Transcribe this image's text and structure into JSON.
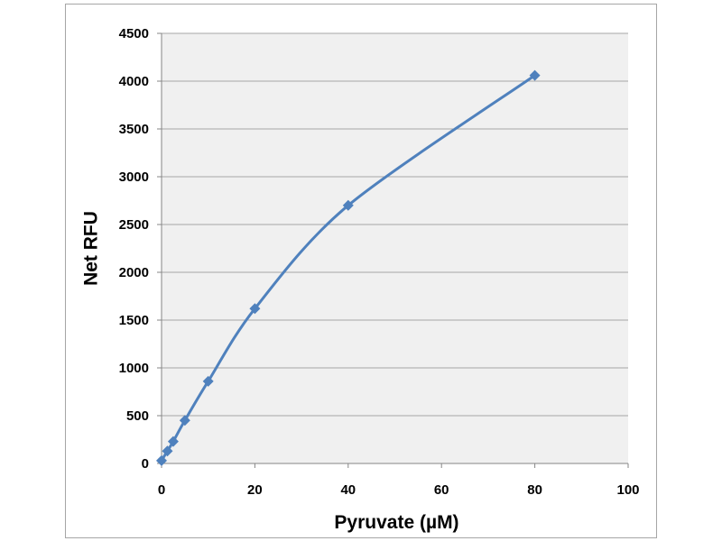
{
  "chart_data": {
    "type": "scatter",
    "xlabel": "Pyruvate (µM)",
    "ylabel": "Net RFU",
    "xlim": [
      0,
      100
    ],
    "ylim": [
      0,
      4500
    ],
    "xticks": [
      0,
      20,
      40,
      60,
      80,
      100
    ],
    "yticks": [
      0,
      500,
      1000,
      1500,
      2000,
      2500,
      3000,
      3500,
      4000,
      4500
    ],
    "grid": "horizontal",
    "legend": "none",
    "series": [
      {
        "marker": "diamond",
        "line": "smooth",
        "color": "#4f81bd",
        "x": [
          0,
          1.25,
          2.5,
          5,
          10,
          20,
          40,
          80
        ],
        "y": [
          30,
          130,
          230,
          450,
          860,
          1620,
          2700,
          4060
        ]
      }
    ]
  },
  "colors": {
    "plot_background": "#f0f0f0",
    "grid": "#a6a6a6",
    "series": "#4f81bd"
  }
}
